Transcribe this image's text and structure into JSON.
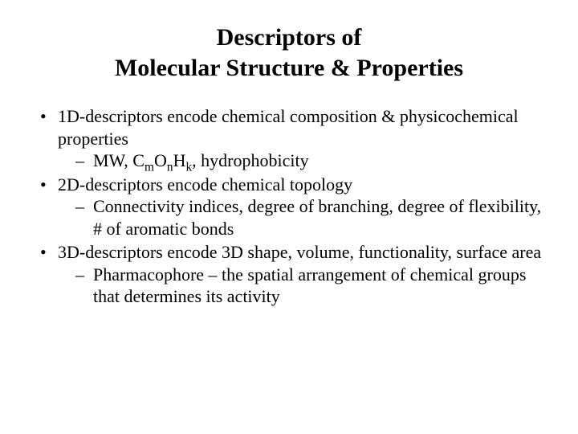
{
  "title_line1": "Descriptors of",
  "title_line2": "Molecular Structure & Properties",
  "bullets": {
    "b1": "1D-descriptors encode chemical composition & physicochemical properties",
    "b1_sub1_prefix": "MW, C",
    "b1_sub1_m": "m",
    "b1_sub1_O": "O",
    "b1_sub1_n": "n",
    "b1_sub1_H": "H",
    "b1_sub1_k": "k",
    "b1_sub1_suffix": ", hydrophobicity",
    "b2": "2D-descriptors encode chemical topology",
    "b2_sub1": "Connectivity indices, degree of branching, degree of flexibility, # of aromatic bonds",
    "b3": "3D-descriptors encode 3D shape, volume, functionality, surface area",
    "b3_sub1": "Pharmacophore – the spatial arrangement of chemical groups that determines its activity"
  }
}
